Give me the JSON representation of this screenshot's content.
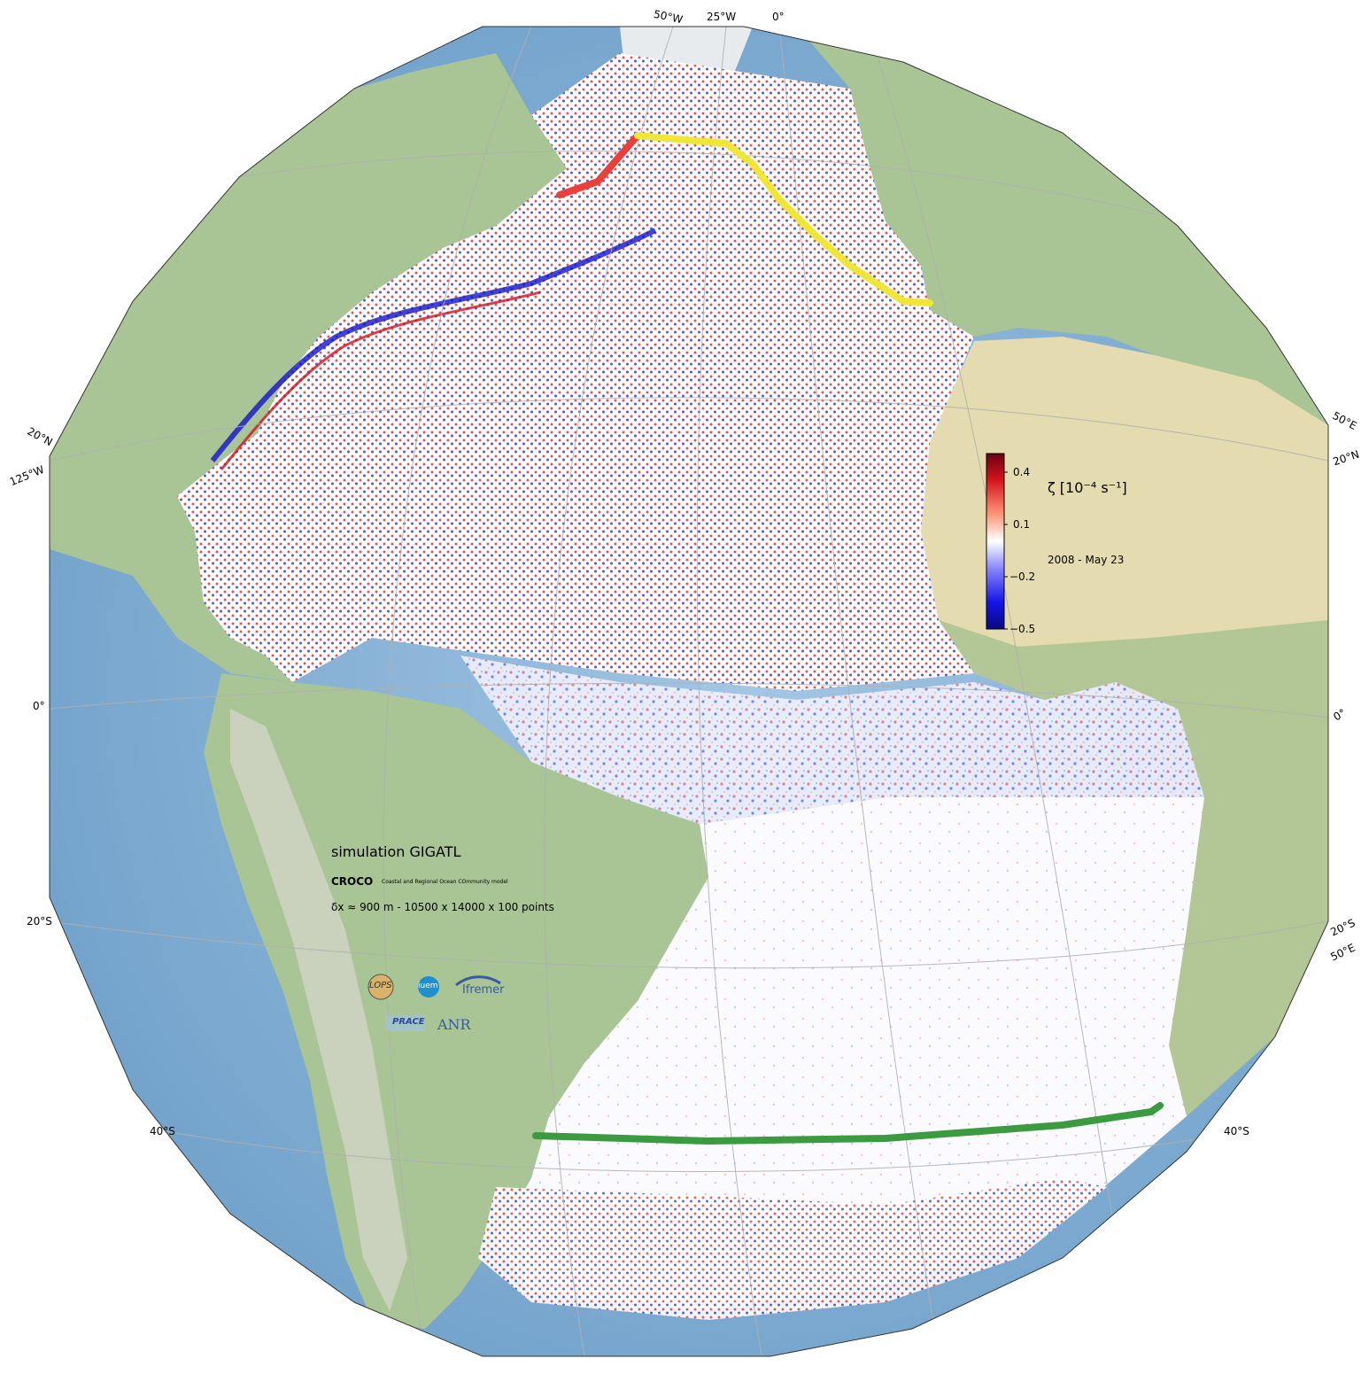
{
  "map": {
    "projection": "orthographic",
    "center": "Atlantic Ocean",
    "field": "relative vorticity",
    "colormap": "seismic",
    "colors": {
      "ocean_far": "#79a9ce",
      "land_green": "#9fbf8c",
      "land_desert": "#e4dcb0",
      "ice": "#e8ebee",
      "positive": "#d2141c",
      "negative": "#1414c8",
      "coast": "#000000",
      "grid": "#b0b0b0"
    },
    "sections": [
      {
        "name": "red-section",
        "color": "#e8403a"
      },
      {
        "name": "yellow-section",
        "color": "#f0e63a"
      },
      {
        "name": "green-section",
        "color": "#3c9a40"
      }
    ]
  },
  "graticule": {
    "top_labels": [
      "50°W",
      "25°W",
      "0°"
    ],
    "left_labels": [
      "20°N",
      "125°W",
      "0°",
      "20°S",
      "40°S"
    ],
    "right_labels": [
      "50°E",
      "20°N",
      "0°",
      "20°S",
      "50°E",
      "40°S"
    ]
  },
  "colorbar": {
    "label": "ζ [10⁻⁴ s⁻¹]",
    "ticks": [
      "0.4",
      "0.1",
      "−0.2",
      "−0.5"
    ],
    "range": [
      -0.5,
      0.45
    ],
    "date": "2008 - May 23"
  },
  "annotation": {
    "title": "simulation GIGATL",
    "model_name": "CROCO",
    "model_full": "Coastal and Regional Ocean COmmunity model",
    "resolution": "δx ≈ 900 m - 10500 x 14000 x 100 points"
  },
  "logos": {
    "lops": "LOPS",
    "iuem": "iuem",
    "ifremer": "Ifremer",
    "prace": "PRACE",
    "anr": "ANR"
  }
}
